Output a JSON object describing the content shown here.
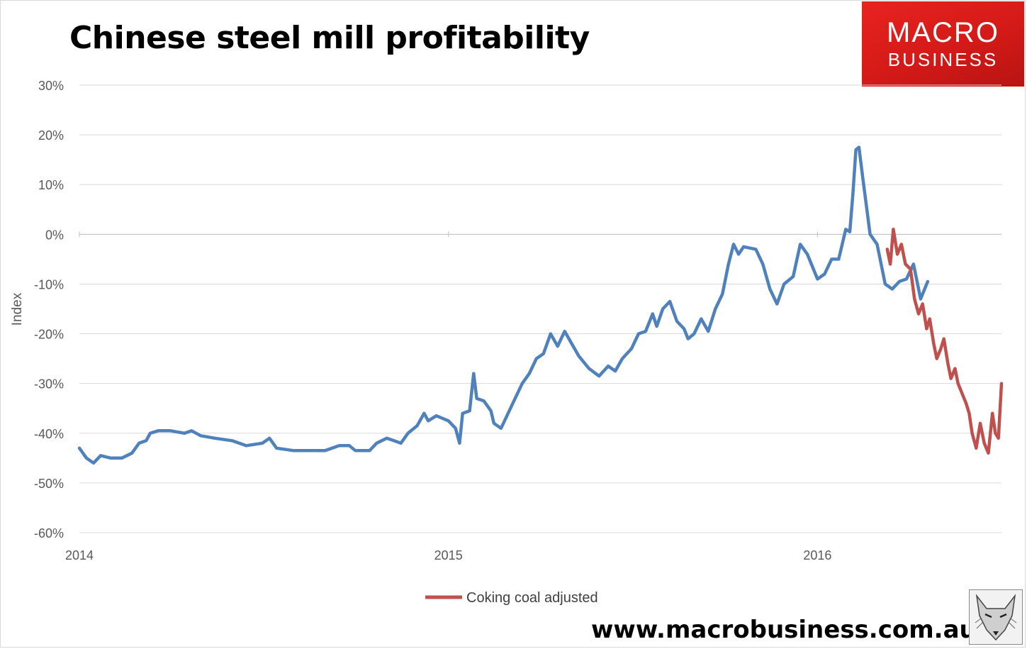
{
  "title": "Chinese steel mill profitability",
  "logo": {
    "line1": "MACRO",
    "line2": "BUSINESS"
  },
  "url": "www.macrobusiness.com.au",
  "chart_data": {
    "type": "line",
    "title": "Chinese steel mill profitability",
    "xlabel": "",
    "ylabel": "Index",
    "ylim": [
      -0.6,
      0.3
    ],
    "xlim": [
      "2014-01-01",
      "2016-07-01"
    ],
    "y_ticks": [
      "30%",
      "20%",
      "10%",
      "0%",
      "-10%",
      "-20%",
      "-30%",
      "-40%",
      "-50%",
      "-60%"
    ],
    "x_ticks": [
      {
        "label": "2014",
        "date": "2014-01-01"
      },
      {
        "label": "2015",
        "date": "2015-01-01"
      },
      {
        "label": "2016",
        "date": "2016-01-01"
      }
    ],
    "grid": true,
    "legend": "bottom",
    "series": [
      {
        "name": "",
        "color": "#4f81bd",
        "points": [
          [
            "2014-01-01",
            -0.43
          ],
          [
            "2014-01-08",
            -0.45
          ],
          [
            "2014-01-15",
            -0.46
          ],
          [
            "2014-01-22",
            -0.445
          ],
          [
            "2014-02-01",
            -0.45
          ],
          [
            "2014-02-12",
            -0.45
          ],
          [
            "2014-02-22",
            -0.44
          ],
          [
            "2014-03-01",
            -0.42
          ],
          [
            "2014-03-08",
            -0.415
          ],
          [
            "2014-03-12",
            -0.4
          ],
          [
            "2014-03-20",
            -0.395
          ],
          [
            "2014-04-01",
            -0.395
          ],
          [
            "2014-04-15",
            -0.4
          ],
          [
            "2014-04-22",
            -0.395
          ],
          [
            "2014-05-01",
            -0.405
          ],
          [
            "2014-05-15",
            -0.41
          ],
          [
            "2014-06-01",
            -0.415
          ],
          [
            "2014-06-15",
            -0.425
          ],
          [
            "2014-07-01",
            -0.42
          ],
          [
            "2014-07-08",
            -0.41
          ],
          [
            "2014-07-15",
            -0.43
          ],
          [
            "2014-08-01",
            -0.435
          ],
          [
            "2014-08-15",
            -0.435
          ],
          [
            "2014-09-01",
            -0.435
          ],
          [
            "2014-09-15",
            -0.425
          ],
          [
            "2014-09-25",
            -0.425
          ],
          [
            "2014-10-01",
            -0.435
          ],
          [
            "2014-10-15",
            -0.435
          ],
          [
            "2014-10-22",
            -0.42
          ],
          [
            "2014-11-01",
            -0.41
          ],
          [
            "2014-11-08",
            -0.415
          ],
          [
            "2014-11-15",
            -0.42
          ],
          [
            "2014-11-22",
            -0.4
          ],
          [
            "2014-12-01",
            -0.385
          ],
          [
            "2014-12-08",
            -0.36
          ],
          [
            "2014-12-12",
            -0.375
          ],
          [
            "2014-12-20",
            -0.365
          ],
          [
            "2015-01-01",
            -0.375
          ],
          [
            "2015-01-08",
            -0.39
          ],
          [
            "2015-01-12",
            -0.42
          ],
          [
            "2015-01-15",
            -0.36
          ],
          [
            "2015-01-22",
            -0.355
          ],
          [
            "2015-01-26",
            -0.28
          ],
          [
            "2015-01-29",
            -0.33
          ],
          [
            "2015-02-05",
            -0.335
          ],
          [
            "2015-02-12",
            -0.355
          ],
          [
            "2015-02-15",
            -0.38
          ],
          [
            "2015-02-22",
            -0.39
          ],
          [
            "2015-03-01",
            -0.36
          ],
          [
            "2015-03-08",
            -0.33
          ],
          [
            "2015-03-15",
            -0.3
          ],
          [
            "2015-03-22",
            -0.28
          ],
          [
            "2015-03-29",
            -0.25
          ],
          [
            "2015-04-05",
            -0.24
          ],
          [
            "2015-04-12",
            -0.2
          ],
          [
            "2015-04-19",
            -0.225
          ],
          [
            "2015-04-26",
            -0.195
          ],
          [
            "2015-05-03",
            -0.22
          ],
          [
            "2015-05-10",
            -0.245
          ],
          [
            "2015-05-20",
            -0.27
          ],
          [
            "2015-05-30",
            -0.285
          ],
          [
            "2015-06-08",
            -0.265
          ],
          [
            "2015-06-15",
            -0.275
          ],
          [
            "2015-06-22",
            -0.25
          ],
          [
            "2015-07-01",
            -0.23
          ],
          [
            "2015-07-08",
            -0.2
          ],
          [
            "2015-07-15",
            -0.195
          ],
          [
            "2015-07-22",
            -0.16
          ],
          [
            "2015-07-26",
            -0.185
          ],
          [
            "2015-08-01",
            -0.15
          ],
          [
            "2015-08-08",
            -0.135
          ],
          [
            "2015-08-15",
            -0.175
          ],
          [
            "2015-08-22",
            -0.19
          ],
          [
            "2015-08-26",
            -0.21
          ],
          [
            "2015-09-01",
            -0.2
          ],
          [
            "2015-09-08",
            -0.17
          ],
          [
            "2015-09-15",
            -0.195
          ],
          [
            "2015-09-22",
            -0.15
          ],
          [
            "2015-09-29",
            -0.12
          ],
          [
            "2015-10-05",
            -0.06
          ],
          [
            "2015-10-10",
            -0.02
          ],
          [
            "2015-10-15",
            -0.04
          ],
          [
            "2015-10-20",
            -0.025
          ],
          [
            "2015-11-01",
            -0.03
          ],
          [
            "2015-11-08",
            -0.06
          ],
          [
            "2015-11-15",
            -0.11
          ],
          [
            "2015-11-22",
            -0.14
          ],
          [
            "2015-11-29",
            -0.1
          ],
          [
            "2015-12-08",
            -0.085
          ],
          [
            "2015-12-15",
            -0.02
          ],
          [
            "2015-12-22",
            -0.04
          ],
          [
            "2016-01-01",
            -0.09
          ],
          [
            "2016-01-08",
            -0.08
          ],
          [
            "2016-01-15",
            -0.05
          ],
          [
            "2016-01-22",
            -0.05
          ],
          [
            "2016-01-29",
            0.01
          ],
          [
            "2016-02-02",
            0.005
          ],
          [
            "2016-02-05",
            0.08
          ],
          [
            "2016-02-08",
            0.17
          ],
          [
            "2016-02-11",
            0.175
          ],
          [
            "2016-02-15",
            0.11
          ],
          [
            "2016-02-22",
            0.0
          ],
          [
            "2016-02-29",
            -0.02
          ],
          [
            "2016-03-08",
            -0.1
          ],
          [
            "2016-03-15",
            -0.11
          ],
          [
            "2016-03-22",
            -0.095
          ],
          [
            "2016-03-29",
            -0.09
          ],
          [
            "2016-04-05",
            -0.06
          ],
          [
            "2016-04-12",
            -0.13
          ],
          [
            "2016-04-19",
            -0.095
          ]
        ]
      },
      {
        "name": "Coking coal adjusted",
        "color": "#c0504d",
        "points": [
          [
            "2016-03-10",
            -0.03
          ],
          [
            "2016-03-13",
            -0.06
          ],
          [
            "2016-03-16",
            0.01
          ],
          [
            "2016-03-20",
            -0.04
          ],
          [
            "2016-03-24",
            -0.02
          ],
          [
            "2016-03-28",
            -0.06
          ],
          [
            "2016-04-02",
            -0.07
          ],
          [
            "2016-04-06",
            -0.13
          ],
          [
            "2016-04-10",
            -0.16
          ],
          [
            "2016-04-14",
            -0.14
          ],
          [
            "2016-04-18",
            -0.19
          ],
          [
            "2016-04-21",
            -0.17
          ],
          [
            "2016-04-25",
            -0.22
          ],
          [
            "2016-04-28",
            -0.25
          ],
          [
            "2016-05-02",
            -0.23
          ],
          [
            "2016-05-05",
            -0.21
          ],
          [
            "2016-05-09",
            -0.26
          ],
          [
            "2016-05-12",
            -0.29
          ],
          [
            "2016-05-16",
            -0.27
          ],
          [
            "2016-05-19",
            -0.3
          ],
          [
            "2016-05-23",
            -0.32
          ],
          [
            "2016-05-27",
            -0.34
          ],
          [
            "2016-05-30",
            -0.36
          ],
          [
            "2016-06-02",
            -0.4
          ],
          [
            "2016-06-06",
            -0.43
          ],
          [
            "2016-06-10",
            -0.38
          ],
          [
            "2016-06-14",
            -0.42
          ],
          [
            "2016-06-18",
            -0.44
          ],
          [
            "2016-06-22",
            -0.36
          ],
          [
            "2016-06-25",
            -0.4
          ],
          [
            "2016-06-28",
            -0.41
          ],
          [
            "2016-07-01",
            -0.3
          ]
        ]
      }
    ]
  }
}
